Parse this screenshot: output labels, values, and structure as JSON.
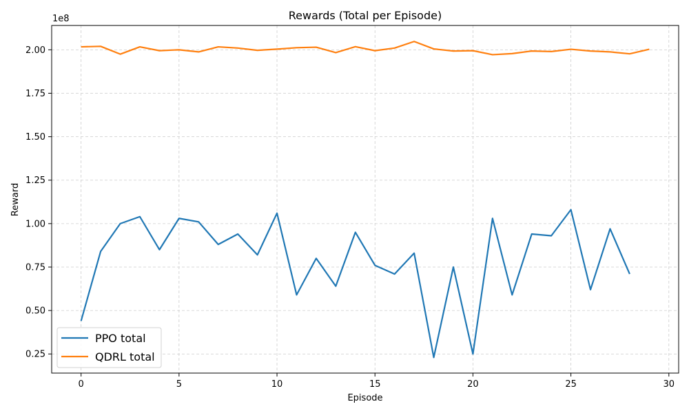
{
  "chart_data": {
    "type": "line",
    "title": "Rewards (Total per Episode)",
    "xlabel": "Episode",
    "ylabel": "Reward",
    "y_offset_label": "1e8",
    "xlim": [
      -1.5,
      30.5
    ],
    "ylim": [
      0.14,
      2.14
    ],
    "x_ticks": [
      0,
      5,
      10,
      15,
      20,
      25,
      30
    ],
    "x_tick_labels": [
      "0",
      "5",
      "10",
      "15",
      "20",
      "25",
      "30"
    ],
    "y_ticks": [
      0.25,
      0.5,
      0.75,
      1.0,
      1.25,
      1.5,
      1.75,
      2.0
    ],
    "y_tick_labels": [
      "0.25",
      "0.50",
      "0.75",
      "1.00",
      "1.25",
      "1.50",
      "1.75",
      "2.00"
    ],
    "grid": true,
    "legend_position": "lower-left",
    "series": [
      {
        "name": "PPO total",
        "color": "#1f77b4",
        "x": [
          0,
          1,
          2,
          3,
          4,
          5,
          6,
          7,
          8,
          9,
          10,
          11,
          12,
          13,
          14,
          15,
          16,
          17,
          18,
          19,
          20,
          21,
          22,
          23,
          24,
          25,
          26,
          27,
          28
        ],
        "y": [
          0.44,
          0.84,
          1.0,
          1.04,
          0.85,
          1.03,
          1.01,
          0.88,
          0.94,
          0.82,
          1.06,
          0.59,
          0.8,
          0.64,
          0.95,
          0.76,
          0.71,
          0.83,
          0.23,
          0.75,
          0.25,
          1.03,
          0.59,
          0.94,
          0.93,
          1.08,
          0.62,
          0.97,
          0.71
        ]
      },
      {
        "name": "QDRL total",
        "color": "#ff7f0e",
        "x": [
          0,
          1,
          2,
          3,
          4,
          5,
          6,
          7,
          8,
          9,
          10,
          11,
          12,
          13,
          14,
          15,
          16,
          17,
          18,
          19,
          20,
          21,
          22,
          23,
          24,
          25,
          26,
          27,
          28,
          29
        ],
        "y": [
          2.017,
          2.02,
          1.975,
          2.017,
          1.995,
          2.0,
          1.988,
          2.017,
          2.01,
          1.997,
          2.004,
          2.012,
          2.015,
          1.984,
          2.018,
          1.995,
          2.01,
          2.048,
          2.005,
          1.993,
          1.995,
          1.972,
          1.978,
          1.993,
          1.99,
          2.003,
          1.993,
          1.988,
          1.977,
          2.003
        ]
      }
    ]
  }
}
